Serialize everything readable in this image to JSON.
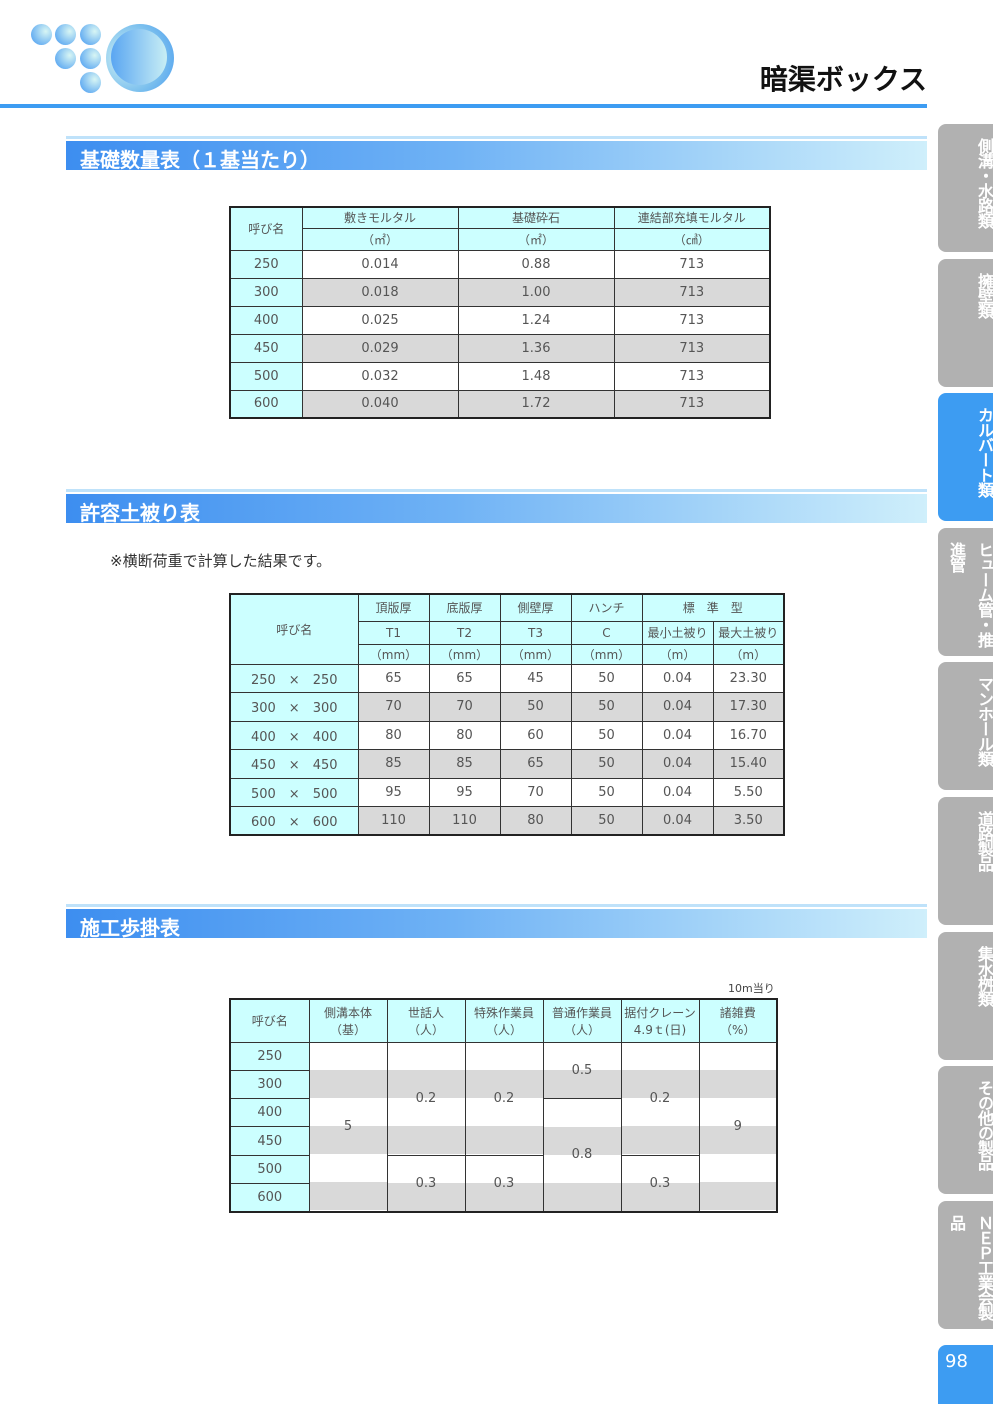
{
  "header": {
    "title": "暗渠ボックス",
    "accent": "#3d9cf2"
  },
  "sections": [
    "基礎数量表（１基当たり）",
    "許容土被り表",
    "施工歩掛表"
  ],
  "table1": {
    "headers": [
      "呼び名",
      "敷きモルタル",
      "基礎砕石",
      "連結部充填モルタル"
    ],
    "units": [
      "（㎡）",
      "（㎡）",
      "（㎤）"
    ],
    "rows": [
      [
        "250",
        "0.014",
        "0.88",
        "713"
      ],
      [
        "300",
        "0.018",
        "1.00",
        "713"
      ],
      [
        "400",
        "0.025",
        "1.24",
        "713"
      ],
      [
        "450",
        "0.029",
        "1.36",
        "713"
      ],
      [
        "500",
        "0.032",
        "1.48",
        "713"
      ],
      [
        "600",
        "0.040",
        "1.72",
        "713"
      ]
    ]
  },
  "note": "※横断荷重で計算した結果です。",
  "table2": {
    "name_header": "呼び名",
    "headers": [
      "頂版厚",
      "底版厚",
      "側壁厚",
      "ハンチ",
      "標　準　型"
    ],
    "symbols": [
      "T1",
      "T2",
      "T3",
      "C",
      "最小土被り",
      "最大土被り"
    ],
    "units": [
      "（mm）",
      "（mm）",
      "（mm）",
      "（mm）",
      "（m）",
      "（m）"
    ],
    "rows": [
      [
        "250　×　250",
        "65",
        "65",
        "45",
        "50",
        "0.04",
        "23.30"
      ],
      [
        "300　×　300",
        "70",
        "70",
        "50",
        "50",
        "0.04",
        "17.30"
      ],
      [
        "400　×　400",
        "80",
        "80",
        "60",
        "50",
        "0.04",
        "16.70"
      ],
      [
        "450　×　450",
        "85",
        "85",
        "65",
        "50",
        "0.04",
        "15.40"
      ],
      [
        "500　×　500",
        "95",
        "95",
        "70",
        "50",
        "0.04",
        "5.50"
      ],
      [
        "600　×　600",
        "110",
        "110",
        "80",
        "50",
        "0.04",
        "3.50"
      ]
    ]
  },
  "table3": {
    "per_unit": "10m当り",
    "headers": [
      [
        "呼び名",
        ""
      ],
      [
        "側溝本体",
        "（基）"
      ],
      [
        "世話人",
        "（人）"
      ],
      [
        "特殊作業員",
        "（人）"
      ],
      [
        "普通作業員",
        "（人）"
      ],
      [
        "据付クレーン",
        "4.9ｔ(日)"
      ],
      [
        "諸雑費",
        "（%）"
      ]
    ],
    "names": [
      "250",
      "300",
      "400",
      "450",
      "500",
      "600"
    ],
    "body": "5",
    "sewa": [
      "0.2",
      "0.3"
    ],
    "tokushu": [
      "0.2",
      "0.3"
    ],
    "futsu": [
      "0.5",
      "0.8"
    ],
    "crane": [
      "0.2",
      "0.3"
    ],
    "misc": "9"
  },
  "sidebar": {
    "tabs": [
      "側溝・水路類",
      "擁壁類",
      "カルバート類",
      "ヒューム管・推進管",
      "マンホール類",
      "道路製品",
      "集水桝類",
      "その他の製品",
      "ＮＥＰ工業会製品"
    ],
    "active": 2,
    "page_number": "98"
  }
}
